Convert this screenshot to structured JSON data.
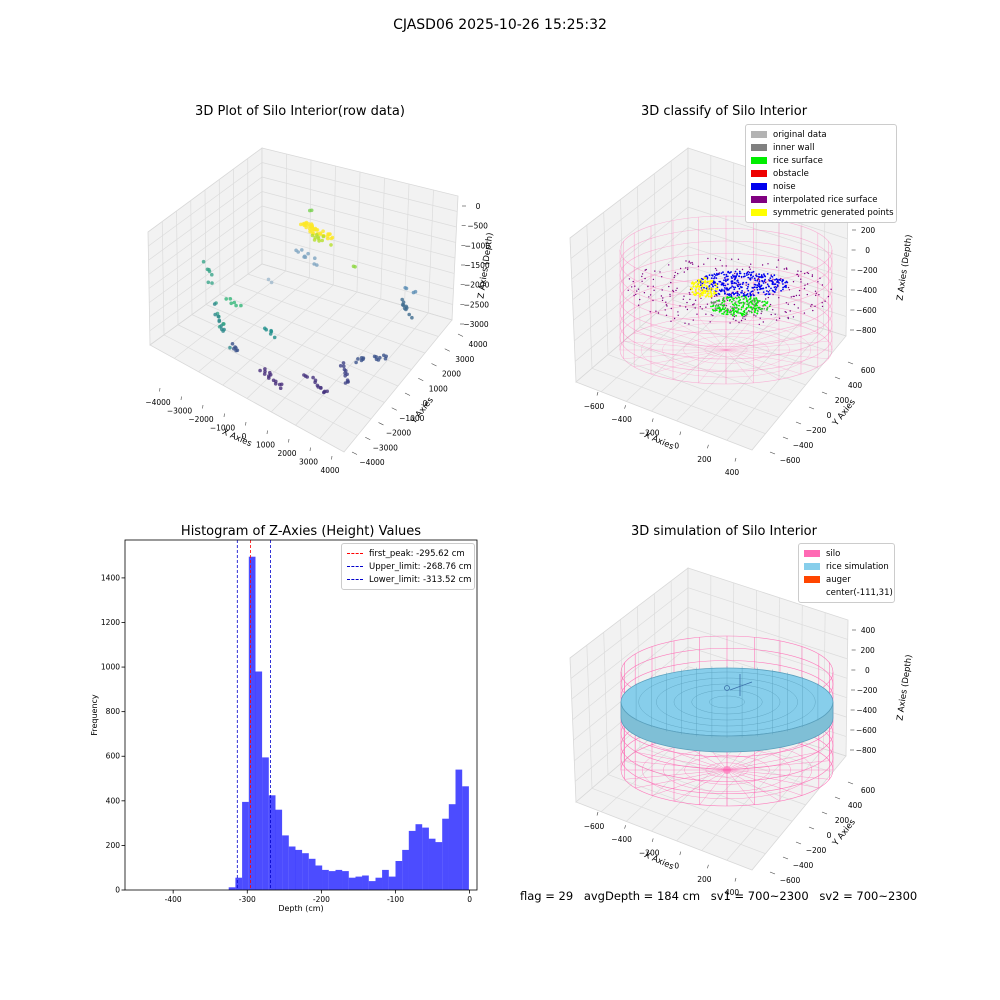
{
  "page": {
    "suptitle": "CJASD06 2025-10-26 15:25:32"
  },
  "chart_data": [
    {
      "type": "scatter",
      "title": "3D Plot of Silo Interior(row data)",
      "xlabel": "X Axies",
      "ylabel": "Y Axies",
      "zlabel": "Z Axies (Depth)",
      "xticks": [
        "−4000",
        "−3000",
        "−2000",
        "−1000",
        "0",
        "1000",
        "2000",
        "3000",
        "4000"
      ],
      "yticks": [
        "−4000",
        "−3000",
        "−2000",
        "−1000",
        "0",
        "1000",
        "2000",
        "3000",
        "4000"
      ],
      "zticks": [
        "0",
        "−500",
        "−1000",
        "−1500",
        "−2000",
        "−2500",
        "−3000"
      ],
      "xlim": [
        -4500,
        4000
      ],
      "ylim": [
        -4500,
        4500
      ],
      "zlim": [
        -3500,
        0
      ],
      "grid": true
    },
    {
      "type": "scatter",
      "title": "3D classify of Silo Interior",
      "xlabel": "X Axies",
      "ylabel": "Y Axies",
      "zlabel": "Z Axies (Depth)",
      "xticks": [
        "−600",
        "−400",
        "−200",
        "0",
        "200",
        "400"
      ],
      "yticks": [
        "−600",
        "−400",
        "−200",
        "0",
        "200",
        "400",
        "600"
      ],
      "zticks": [
        "200",
        "0",
        "−200",
        "−400",
        "−600",
        "−800"
      ],
      "legend": {
        "position": "top-right",
        "items": [
          {
            "label": "original data",
            "color": "#b3b3b3"
          },
          {
            "label": "inner wall",
            "color": "#808080"
          },
          {
            "label": "rice surface",
            "color": "#00ee00"
          },
          {
            "label": "obstacle",
            "color": "#ee0000"
          },
          {
            "label": "noise",
            "color": "#0000ee"
          },
          {
            "label": "interpolated rice surface",
            "color": "#800080"
          },
          {
            "label": "symmetric generated points",
            "color": "#ffff00"
          }
        ]
      },
      "grid": true
    },
    {
      "type": "bar",
      "title": "Histogram of Z-Axies (Height) Values",
      "xlabel": "Depth (cm)",
      "ylabel": "Frequency",
      "xlim": [
        -465,
        10
      ],
      "ylim": [
        0,
        1570
      ],
      "xticks": [
        -400,
        -300,
        -200,
        -100,
        0
      ],
      "yticks": [
        0,
        200,
        400,
        600,
        800,
        1000,
        1200,
        1400
      ],
      "bin_width": 9,
      "bins": [
        {
          "x0": -325,
          "v": 12
        },
        {
          "x0": -316,
          "v": 55
        },
        {
          "x0": -307,
          "v": 395
        },
        {
          "x0": -298,
          "v": 1495
        },
        {
          "x0": -289,
          "v": 980
        },
        {
          "x0": -280,
          "v": 595
        },
        {
          "x0": -271,
          "v": 425
        },
        {
          "x0": -262,
          "v": 360
        },
        {
          "x0": -253,
          "v": 245
        },
        {
          "x0": -244,
          "v": 195
        },
        {
          "x0": -235,
          "v": 180
        },
        {
          "x0": -226,
          "v": 165
        },
        {
          "x0": -217,
          "v": 140
        },
        {
          "x0": -208,
          "v": 110
        },
        {
          "x0": -199,
          "v": 90
        },
        {
          "x0": -190,
          "v": 85
        },
        {
          "x0": -181,
          "v": 90
        },
        {
          "x0": -172,
          "v": 85
        },
        {
          "x0": -163,
          "v": 55
        },
        {
          "x0": -154,
          "v": 60
        },
        {
          "x0": -145,
          "v": 65
        },
        {
          "x0": -136,
          "v": 40
        },
        {
          "x0": -127,
          "v": 55
        },
        {
          "x0": -118,
          "v": 90
        },
        {
          "x0": -109,
          "v": 60
        },
        {
          "x0": -100,
          "v": 130
        },
        {
          "x0": -91,
          "v": 180
        },
        {
          "x0": -82,
          "v": 265
        },
        {
          "x0": -73,
          "v": 295
        },
        {
          "x0": -64,
          "v": 280
        },
        {
          "x0": -55,
          "v": 230
        },
        {
          "x0": -46,
          "v": 215
        },
        {
          "x0": -37,
          "v": 320
        },
        {
          "x0": -28,
          "v": 385
        },
        {
          "x0": -19,
          "v": 540
        },
        {
          "x0": -10,
          "v": 465
        }
      ],
      "color": "#0000ff",
      "vlines": [
        {
          "label": "first_peak: -295.62 cm",
          "x": -295.62,
          "color": "#ff0000"
        },
        {
          "label": "Upper_limit: -268.76 cm",
          "x": -268.76,
          "color": "#0000cc"
        },
        {
          "label": "Lower_limit: -313.52 cm",
          "x": -313.52,
          "color": "#0000cc"
        }
      ],
      "legend": {
        "position": "top-right"
      }
    },
    {
      "type": "area",
      "title": "3D simulation of Silo Interior",
      "xlabel": "X Axies",
      "ylabel": "Y Axies",
      "zlabel": "Z Axies (Depth)",
      "xticks": [
        "−600",
        "−400",
        "−200",
        "0",
        "200",
        "400"
      ],
      "yticks": [
        "−600",
        "−400",
        "−200",
        "0",
        "200",
        "400",
        "600"
      ],
      "zticks": [
        "400",
        "200",
        "0",
        "−200",
        "−400",
        "−600",
        "−800"
      ],
      "legend": {
        "position": "top-right",
        "items": [
          {
            "label": "silo",
            "color": "#ff69b4"
          },
          {
            "label": "rice simulation",
            "color": "#87ceeb"
          },
          {
            "label": "auger",
            "color": "#ff4500"
          },
          {
            "label": "center(-111,31)",
            "color": ""
          }
        ]
      },
      "grid": true
    }
  ],
  "footer": {
    "flag": "flag = 29",
    "avg": "avgDepth = 184 cm",
    "sv1": "sv1 = 700~2300",
    "sv2": "sv2 = 700~2300"
  }
}
